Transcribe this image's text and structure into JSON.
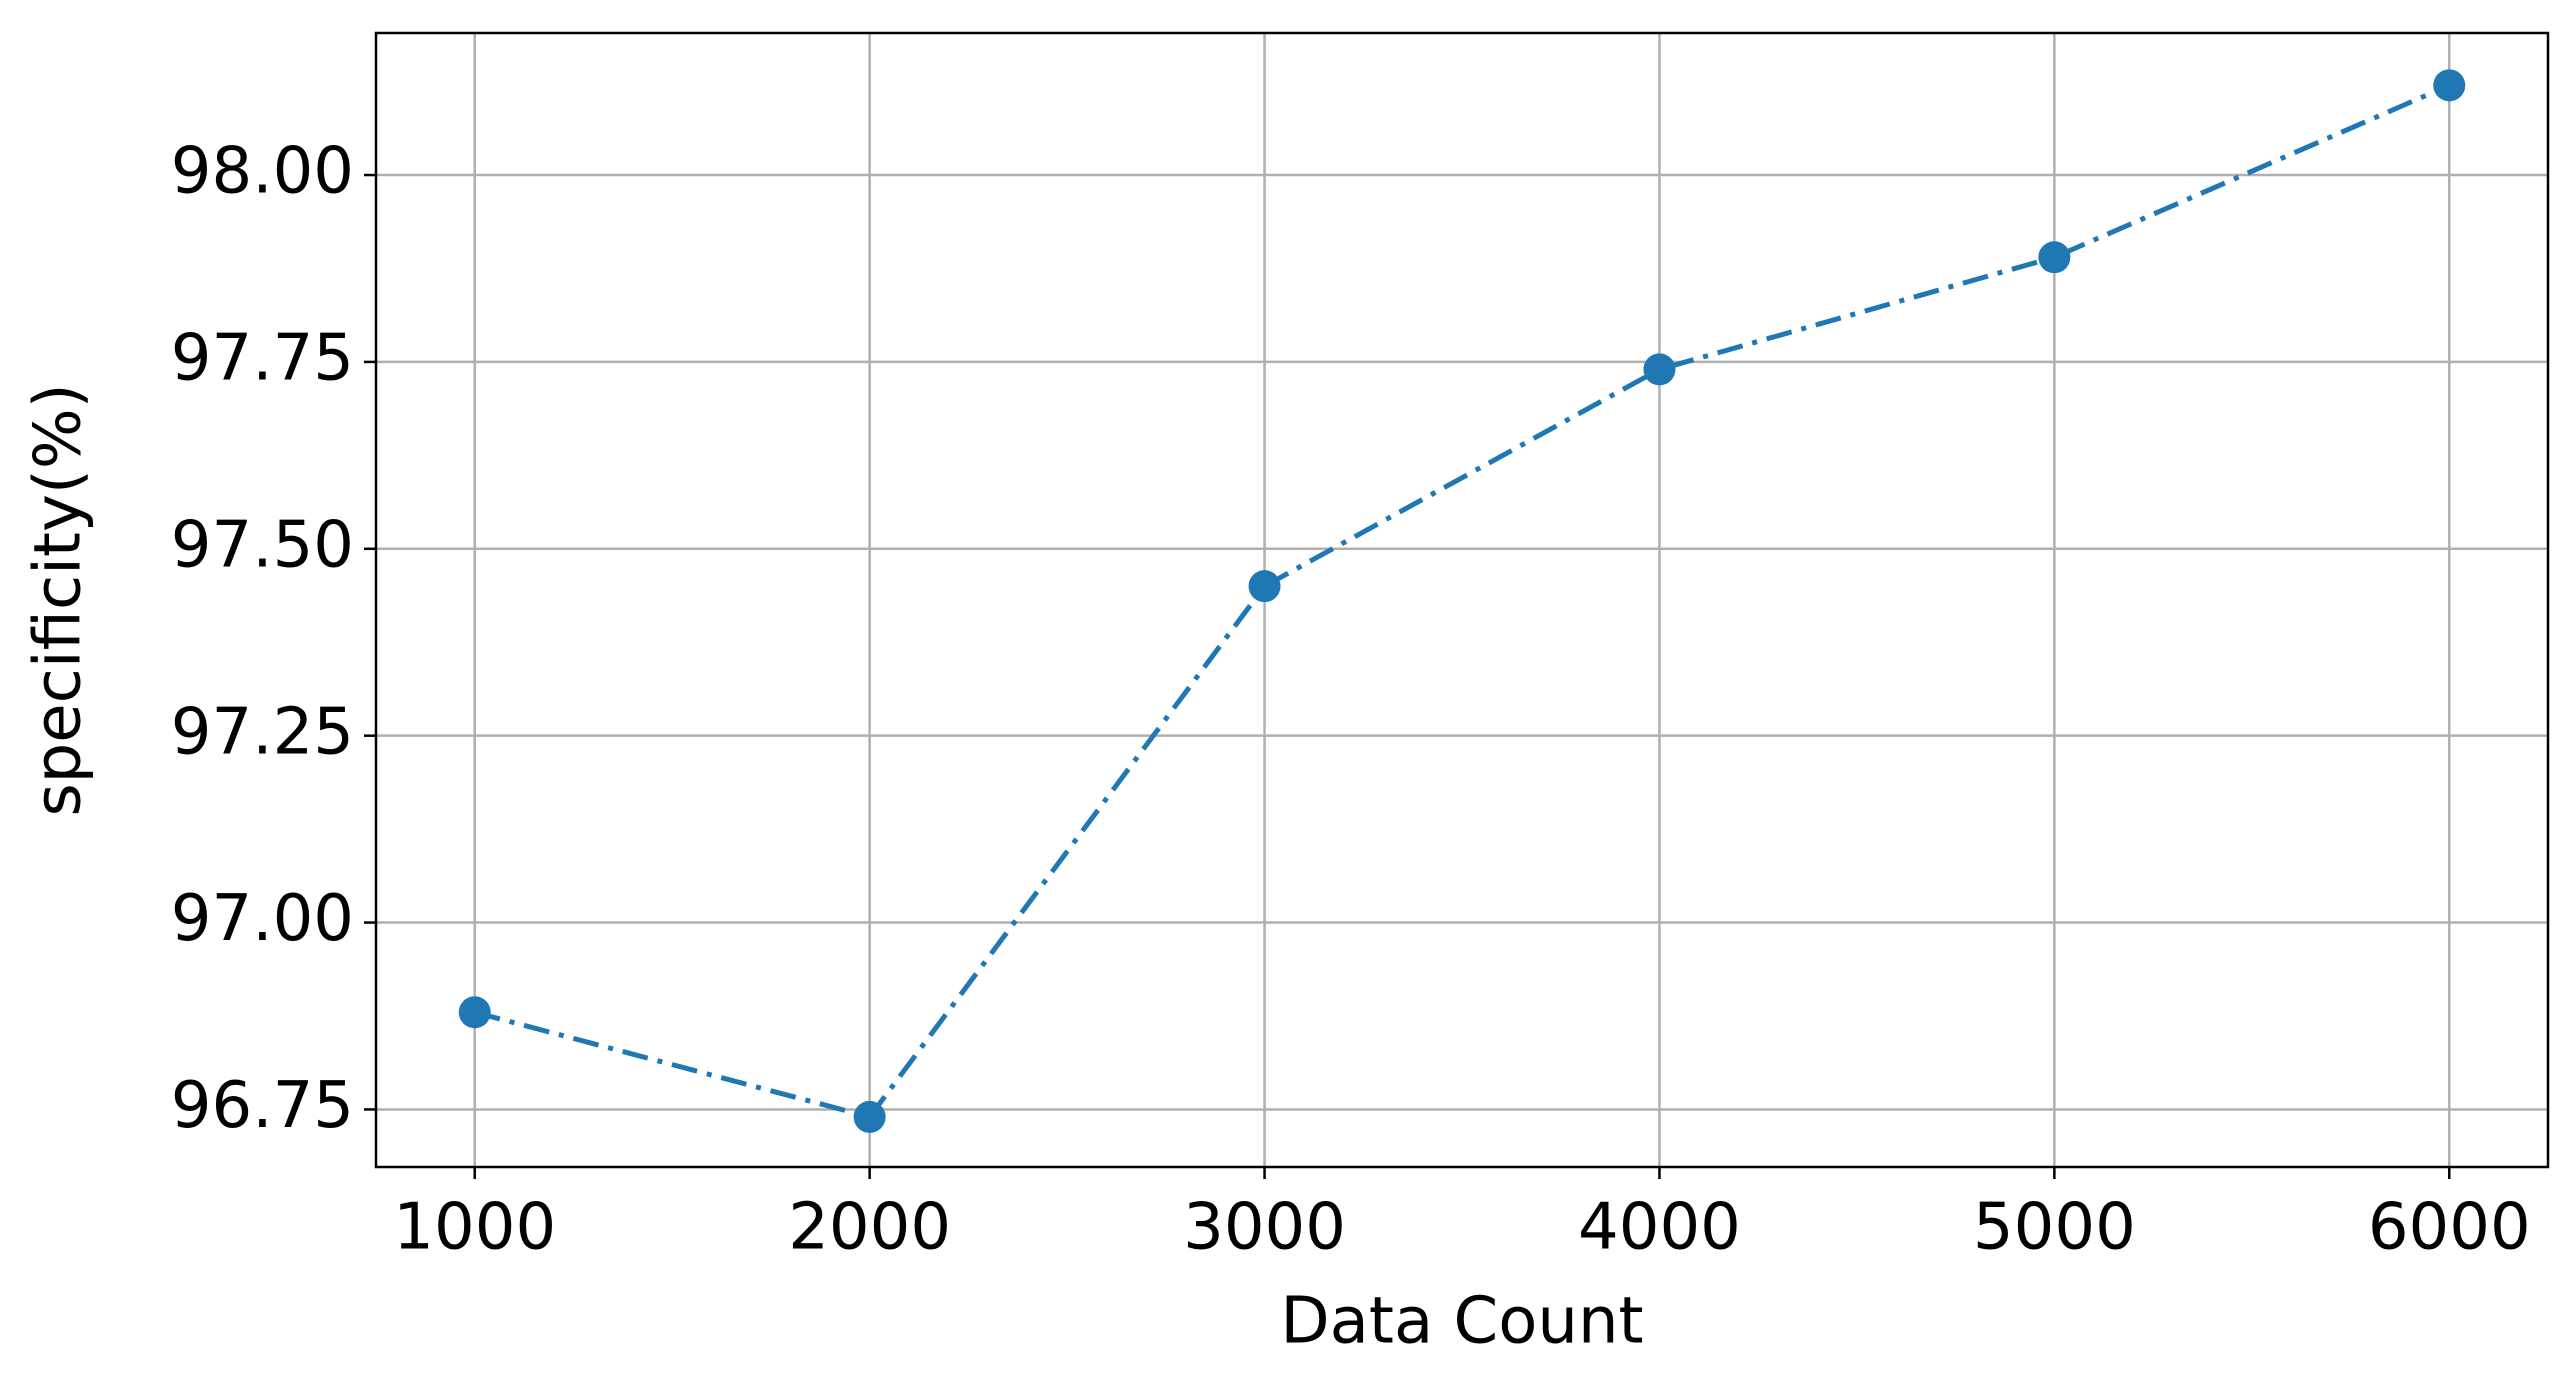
{
  "chart_data": {
    "type": "line",
    "xlabel": "Data Count",
    "ylabel": "specificity(%)",
    "x": [
      1000,
      2000,
      3000,
      4000,
      5000,
      6000
    ],
    "series": [
      {
        "color": "#1f77b4",
        "values": [
          96.88,
          96.74,
          97.45,
          97.74,
          97.89,
          98.12
        ]
      }
    ],
    "xlim": [
      750,
      6250
    ],
    "ylim": [
      96.673,
      98.19
    ],
    "xticks": [
      1000,
      2000,
      3000,
      4000,
      5000,
      6000
    ],
    "yticks": [
      {
        "value": 96.75,
        "label": "96.75"
      },
      {
        "value": 97.0,
        "label": "97.00"
      },
      {
        "value": 97.25,
        "label": "97.25"
      },
      {
        "value": 97.5,
        "label": "97.50"
      },
      {
        "value": 97.75,
        "label": "97.75"
      },
      {
        "value": 98.0,
        "label": "98.00"
      }
    ],
    "grid": true
  }
}
